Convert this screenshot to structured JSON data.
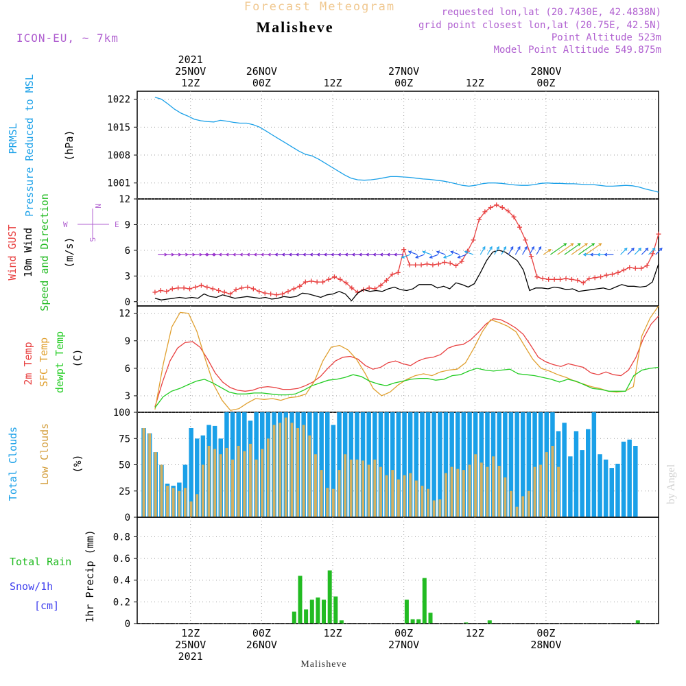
{
  "header": {
    "forecast_title": "Forecast Meteogram",
    "location": "Malisheve",
    "model": "ICON-EU, ~ 7km",
    "requested": "requested lon,lat (20.7430E, 42.4838N)",
    "grid_point": "grid point closest lon,lat (20.75E, 42.5N)",
    "point_altitude": "Point Altitude 523m",
    "model_altitude": "Model Point Altitude 549.875m",
    "footer_location": "Malisheve",
    "watermark": "by Angel"
  },
  "colors": {
    "pressure": "#1aa0e8",
    "gust": "#e84040",
    "wind": "#000000",
    "wind_dir": "#22bb22",
    "temp2m": "#e84040",
    "sfc": "#e0a030",
    "dewpt": "#22cc22",
    "total_clouds": "#1aa0e8",
    "low_clouds": "#d4b060",
    "rain": "#22bb22",
    "snow": "#4040ee",
    "header": "#b060d0",
    "forecast_title": "#f0c890"
  },
  "time_axis": {
    "top_labels": [
      {
        "hour": 12,
        "lines": [
          "2021",
          "25NOV",
          "12Z"
        ]
      },
      {
        "hour": 24,
        "lines": [
          "26NOV",
          "00Z"
        ]
      },
      {
        "hour": 36,
        "lines": [
          "12Z"
        ]
      },
      {
        "hour": 48,
        "lines": [
          "27NOV",
          "00Z"
        ]
      },
      {
        "hour": 60,
        "lines": [
          "12Z"
        ]
      },
      {
        "hour": 72,
        "lines": [
          "28NOV",
          "00Z"
        ]
      }
    ],
    "bottom_labels": [
      {
        "hour": 12,
        "lines": [
          "12Z",
          "25NOV",
          "2021"
        ]
      },
      {
        "hour": 24,
        "lines": [
          "00Z",
          "26NOV"
        ]
      },
      {
        "hour": 36,
        "lines": [
          "12Z"
        ]
      },
      {
        "hour": 48,
        "lines": [
          "00Z",
          "27NOV"
        ]
      },
      {
        "hour": 60,
        "lines": [
          "12Z"
        ]
      },
      {
        "hour": 72,
        "lines": [
          "00Z",
          "28NOV"
        ]
      }
    ]
  },
  "chart_data": [
    {
      "type": "line",
      "panel": "pressure",
      "labels": {
        "left1": "PRMSL",
        "left2": "Pressure Reduced to MSL",
        "unit": "(hPa)"
      },
      "x_start_hour": 6,
      "ylim": [
        997,
        1024
      ],
      "yticks": [
        1001,
        1008,
        1015,
        1022
      ],
      "series": [
        {
          "name": "PRMSL",
          "values": [
            1022.5,
            1022,
            1020.8,
            1019.5,
            1018.5,
            1017.8,
            1017,
            1016.6,
            1016.4,
            1016.3,
            1016.7,
            1016.5,
            1016.2,
            1016,
            1016,
            1015.6,
            1015,
            1014,
            1013,
            1012,
            1011,
            1010,
            1009,
            1008.2,
            1007.8,
            1007,
            1006,
            1005,
            1004,
            1003,
            1002.2,
            1001.8,
            1001.7,
            1001.8,
            1002,
            1002.3,
            1002.6,
            1002.6,
            1002.5,
            1002.4,
            1002.2,
            1002,
            1001.9,
            1001.7,
            1001.5,
            1001.2,
            1000.8,
            1000.4,
            1000.2,
            1000.4,
            1000.8,
            1001,
            1001,
            1000.9,
            1000.7,
            1000.5,
            1000.4,
            1000.4,
            1000.6,
            1000.9,
            1001,
            1000.9,
            1000.9,
            1000.8,
            1000.8,
            1000.7,
            1000.6,
            1000.6,
            1000.4,
            1000.2,
            1000.2,
            1000.3,
            1000.4,
            1000.3,
            1000,
            999.5,
            999.1,
            998.7
          ]
        }
      ]
    },
    {
      "type": "line",
      "panel": "wind",
      "labels": {
        "gust": "Wind GUST",
        "wind": "10m Wind",
        "dir": "Speed and Direction",
        "unit": "(m/s)",
        "compass_n": "N",
        "compass_s": "S",
        "compass_w": "W",
        "compass_e": "E"
      },
      "x_start_hour": 6,
      "ylim": [
        -0.5,
        12
      ],
      "yticks": [
        0,
        3,
        6,
        9,
        12
      ],
      "series": [
        {
          "name": "Wind GUST",
          "values": [
            1.1,
            1.3,
            1.2,
            1.5,
            1.6,
            1.6,
            1.5,
            1.7,
            1.9,
            1.7,
            1.5,
            1.3,
            1.1,
            0.9,
            1.4,
            1.6,
            1.7,
            1.5,
            1.2,
            1.0,
            0.9,
            0.8,
            0.9,
            1.2,
            1.5,
            1.8,
            2.3,
            2.4,
            2.3,
            2.3,
            2.6,
            2.9,
            2.6,
            2.2,
            1.6,
            1.1,
            1.4,
            1.6,
            1.5,
            1.9,
            2.5,
            3.2,
            3.4,
            6.1,
            4.3,
            4.3,
            4.3,
            4.4,
            4.3,
            4.4,
            4.6,
            4.5,
            4.2,
            4.7,
            5.9,
            7.2,
            9.6,
            10.5,
            11.0,
            11.3,
            11.0,
            10.6,
            9.9,
            8.7,
            7.2,
            5.3,
            2.9,
            2.7,
            2.6,
            2.6,
            2.6,
            2.7,
            2.6,
            2.5,
            2.2,
            2.7,
            2.8,
            2.9,
            3.1,
            3.2,
            3.4,
            3.7,
            4.0,
            3.9,
            3.9,
            4.2,
            5.6,
            7.9
          ]
        },
        {
          "name": "10m Wind",
          "values": [
            0.4,
            0.2,
            0.3,
            0.4,
            0.5,
            0.4,
            0.5,
            0.4,
            0.9,
            0.6,
            0.5,
            0.8,
            0.6,
            0.4,
            0.5,
            0.6,
            0.5,
            0.4,
            0.5,
            0.3,
            0.4,
            0.6,
            0.5,
            0.6,
            1.0,
            0.9,
            0.7,
            0.5,
            0.8,
            0.9,
            1.2,
            0.9,
            0.1,
            1.0,
            1.4,
            1.2,
            1.3,
            1.2,
            1.5,
            1.7,
            1.4,
            1.3,
            1.5,
            2.0,
            2.0,
            2.0,
            1.6,
            1.8,
            1.5,
            2.2,
            2.0,
            1.7,
            2.1,
            3.4,
            4.8,
            5.8,
            6.0,
            5.8,
            5.3,
            4.8,
            3.7,
            1.3,
            1.6,
            1.6,
            1.5,
            1.7,
            1.6,
            1.4,
            1.5,
            1.2,
            1.3,
            1.4,
            1.5,
            1.6,
            1.4,
            1.7,
            2.0,
            1.8,
            1.8,
            1.7,
            1.8,
            2.3,
            4.4
          ]
        }
      ]
    },
    {
      "type": "line",
      "panel": "temperature",
      "labels": {
        "t2m": "2m Temp",
        "sfc": "SFC Temp",
        "dewpt": "dewpt Temp",
        "unit": "(C)"
      },
      "x_start_hour": 6,
      "ylim": [
        1.2,
        12.8
      ],
      "yticks": [
        3,
        6,
        9,
        12
      ],
      "series": [
        {
          "name": "2m Temp",
          "values": [
            1.8,
            4.5,
            6.8,
            8.2,
            8.8,
            8.9,
            8.3,
            7.0,
            5.5,
            4.5,
            3.9,
            3.6,
            3.5,
            3.6,
            3.9,
            4.0,
            3.9,
            3.7,
            3.7,
            3.8,
            4.1,
            4.5,
            5.1,
            6.0,
            6.8,
            7.2,
            7.3,
            7.0,
            6.3,
            5.9,
            6.1,
            6.6,
            6.8,
            6.5,
            6.3,
            6.8,
            7.1,
            7.2,
            7.5,
            8.2,
            8.5,
            8.6,
            9.1,
            9.9,
            10.8,
            11.4,
            11.3,
            10.9,
            10.4,
            9.7,
            8.5,
            7.2,
            6.7,
            6.4,
            6.2,
            6.5,
            6.3,
            6.1,
            5.5,
            5.3,
            5.6,
            5.3,
            5.2,
            5.8,
            7.2,
            9.3,
            10.8,
            11.7
          ]
        },
        {
          "name": "SFC Temp",
          "values": [
            1.5,
            6.5,
            10.5,
            12.1,
            12.0,
            10.0,
            7.0,
            4.2,
            2.5,
            1.4,
            1.6,
            2.2,
            2.7,
            2.6,
            2.7,
            2.5,
            2.8,
            2.9,
            3.2,
            4.6,
            6.8,
            8.3,
            8.5,
            8.0,
            7.0,
            5.5,
            3.8,
            3.0,
            3.4,
            4.2,
            4.8,
            5.2,
            5.4,
            5.2,
            5.6,
            5.8,
            5.9,
            6.6,
            8.2,
            10.0,
            11.3,
            11.0,
            10.6,
            10.0,
            8.5,
            7.0,
            6.0,
            5.7,
            5.3,
            5.0,
            4.6,
            4.3,
            4.0,
            3.8,
            3.5,
            3.4,
            3.5,
            4.0,
            9.5,
            11.5,
            12.8
          ]
        },
        {
          "name": "dewpt Temp",
          "values": [
            1.7,
            2.9,
            3.5,
            3.8,
            4.2,
            4.6,
            4.8,
            4.4,
            3.9,
            3.4,
            3.2,
            3.2,
            3.3,
            3.3,
            3.2,
            3.1,
            3.1,
            3.2,
            3.6,
            4.1,
            4.4,
            4.7,
            4.8,
            5.0,
            5.3,
            5.1,
            4.6,
            4.3,
            4.1,
            4.4,
            4.6,
            4.8,
            4.9,
            4.9,
            4.7,
            4.8,
            5.2,
            5.3,
            5.7,
            6.0,
            5.8,
            5.7,
            5.8,
            5.9,
            5.4,
            5.3,
            5.2,
            5.0,
            4.8,
            4.5,
            4.8,
            4.6,
            4.2,
            3.8,
            3.7,
            3.5,
            3.5,
            3.5,
            5.2,
            5.8,
            6.0,
            6.1
          ]
        }
      ]
    },
    {
      "type": "bar",
      "panel": "clouds",
      "labels": {
        "total": "Total Clouds",
        "low": "Low Clouds",
        "unit": "(%)"
      },
      "x_start_hour": 6,
      "ylim": [
        0,
        100
      ],
      "yticks": [
        0,
        25,
        50,
        75,
        100
      ],
      "series": [
        {
          "name": "Total Clouds",
          "values": [
            85,
            80,
            62,
            50,
            32,
            30,
            33,
            50,
            85,
            75,
            78,
            88,
            87,
            75,
            100,
            100,
            100,
            100,
            92,
            100,
            100,
            100,
            100,
            100,
            100,
            100,
            100,
            100,
            100,
            100,
            100,
            100,
            88,
            100,
            100,
            100,
            100,
            100,
            100,
            100,
            100,
            100,
            100,
            100,
            100,
            100,
            100,
            100,
            100,
            100,
            100,
            100,
            100,
            100,
            100,
            100,
            100,
            100,
            100,
            100,
            100,
            100,
            100,
            100,
            100,
            100,
            100,
            100,
            100,
            100,
            82,
            90,
            58,
            82,
            64,
            84,
            100,
            60,
            55,
            47,
            51,
            72,
            74,
            68
          ]
        },
        {
          "name": "Low Clouds",
          "values": [
            85,
            80,
            62,
            50,
            30,
            28,
            25,
            28,
            15,
            22,
            50,
            68,
            65,
            60,
            66,
            55,
            68,
            63,
            70,
            55,
            65,
            75,
            88,
            90,
            95,
            90,
            85,
            88,
            78,
            60,
            45,
            28,
            27,
            45,
            60,
            55,
            55,
            54,
            50,
            55,
            48,
            40,
            45,
            36,
            40,
            42,
            35,
            30,
            27,
            16,
            17,
            42,
            48,
            46,
            45,
            50,
            60,
            52,
            48,
            58,
            49,
            38,
            25,
            10,
            20,
            25,
            48,
            50,
            62,
            68,
            48
          ]
        }
      ]
    },
    {
      "type": "bar",
      "panel": "precip",
      "labels": {
        "total_rain": "Total  Rain",
        "snow": "Snow/1h",
        "snow_unit": "[cm]",
        "ylabel": "1hr Precip (mm)"
      },
      "x_start_hour": 6,
      "ylim": [
        0,
        0.98
      ],
      "yticks": [
        0,
        0.2,
        0.4,
        0.6,
        0.8
      ],
      "series": [
        {
          "name": "Total Rain",
          "values": [
            0,
            0,
            0,
            0,
            0,
            0,
            0,
            0,
            0,
            0,
            0,
            0,
            0,
            0,
            0,
            0,
            0,
            0,
            0,
            0,
            0,
            0,
            0,
            0.11,
            0.44,
            0.13,
            0.22,
            0.24,
            0.22,
            0.49,
            0.25,
            0.03,
            0,
            0,
            0,
            0,
            0,
            0,
            0,
            0,
            0,
            0,
            0.22,
            0.04,
            0.04,
            0.42,
            0.1,
            0,
            0,
            0,
            0,
            0,
            0.01,
            0,
            0,
            0,
            0.03,
            0,
            0,
            0,
            0,
            0,
            0,
            0,
            0,
            0,
            0,
            0,
            0,
            0,
            0,
            0,
            0,
            0,
            0,
            0,
            0,
            0,
            0,
            0,
            0,
            0.03,
            0,
            0,
            0
          ]
        }
      ]
    }
  ]
}
